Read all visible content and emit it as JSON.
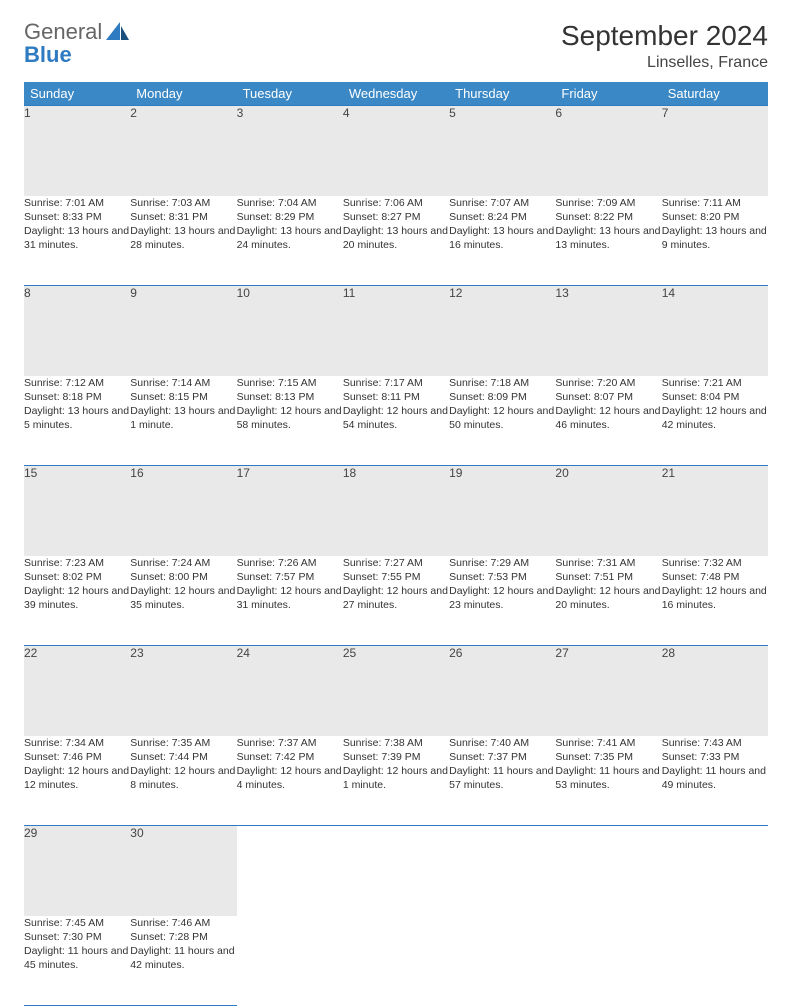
{
  "logo": {
    "word1": "General",
    "word2": "Blue"
  },
  "title": "September 2024",
  "location": "Linselles, France",
  "header_bg": "#3a88c5",
  "rule_color": "#2f7bc2",
  "daynum_bg": "#e9e9e9",
  "weekdays": [
    "Sunday",
    "Monday",
    "Tuesday",
    "Wednesday",
    "Thursday",
    "Friday",
    "Saturday"
  ],
  "weeks": [
    [
      {
        "n": "1",
        "sr": "7:01 AM",
        "ss": "8:33 PM",
        "dl": "13 hours and 31 minutes."
      },
      {
        "n": "2",
        "sr": "7:03 AM",
        "ss": "8:31 PM",
        "dl": "13 hours and 28 minutes."
      },
      {
        "n": "3",
        "sr": "7:04 AM",
        "ss": "8:29 PM",
        "dl": "13 hours and 24 minutes."
      },
      {
        "n": "4",
        "sr": "7:06 AM",
        "ss": "8:27 PM",
        "dl": "13 hours and 20 minutes."
      },
      {
        "n": "5",
        "sr": "7:07 AM",
        "ss": "8:24 PM",
        "dl": "13 hours and 16 minutes."
      },
      {
        "n": "6",
        "sr": "7:09 AM",
        "ss": "8:22 PM",
        "dl": "13 hours and 13 minutes."
      },
      {
        "n": "7",
        "sr": "7:11 AM",
        "ss": "8:20 PM",
        "dl": "13 hours and 9 minutes."
      }
    ],
    [
      {
        "n": "8",
        "sr": "7:12 AM",
        "ss": "8:18 PM",
        "dl": "13 hours and 5 minutes."
      },
      {
        "n": "9",
        "sr": "7:14 AM",
        "ss": "8:15 PM",
        "dl": "13 hours and 1 minute."
      },
      {
        "n": "10",
        "sr": "7:15 AM",
        "ss": "8:13 PM",
        "dl": "12 hours and 58 minutes."
      },
      {
        "n": "11",
        "sr": "7:17 AM",
        "ss": "8:11 PM",
        "dl": "12 hours and 54 minutes."
      },
      {
        "n": "12",
        "sr": "7:18 AM",
        "ss": "8:09 PM",
        "dl": "12 hours and 50 minutes."
      },
      {
        "n": "13",
        "sr": "7:20 AM",
        "ss": "8:07 PM",
        "dl": "12 hours and 46 minutes."
      },
      {
        "n": "14",
        "sr": "7:21 AM",
        "ss": "8:04 PM",
        "dl": "12 hours and 42 minutes."
      }
    ],
    [
      {
        "n": "15",
        "sr": "7:23 AM",
        "ss": "8:02 PM",
        "dl": "12 hours and 39 minutes."
      },
      {
        "n": "16",
        "sr": "7:24 AM",
        "ss": "8:00 PM",
        "dl": "12 hours and 35 minutes."
      },
      {
        "n": "17",
        "sr": "7:26 AM",
        "ss": "7:57 PM",
        "dl": "12 hours and 31 minutes."
      },
      {
        "n": "18",
        "sr": "7:27 AM",
        "ss": "7:55 PM",
        "dl": "12 hours and 27 minutes."
      },
      {
        "n": "19",
        "sr": "7:29 AM",
        "ss": "7:53 PM",
        "dl": "12 hours and 23 minutes."
      },
      {
        "n": "20",
        "sr": "7:31 AM",
        "ss": "7:51 PM",
        "dl": "12 hours and 20 minutes."
      },
      {
        "n": "21",
        "sr": "7:32 AM",
        "ss": "7:48 PM",
        "dl": "12 hours and 16 minutes."
      }
    ],
    [
      {
        "n": "22",
        "sr": "7:34 AM",
        "ss": "7:46 PM",
        "dl": "12 hours and 12 minutes."
      },
      {
        "n": "23",
        "sr": "7:35 AM",
        "ss": "7:44 PM",
        "dl": "12 hours and 8 minutes."
      },
      {
        "n": "24",
        "sr": "7:37 AM",
        "ss": "7:42 PM",
        "dl": "12 hours and 4 minutes."
      },
      {
        "n": "25",
        "sr": "7:38 AM",
        "ss": "7:39 PM",
        "dl": "12 hours and 1 minute."
      },
      {
        "n": "26",
        "sr": "7:40 AM",
        "ss": "7:37 PM",
        "dl": "11 hours and 57 minutes."
      },
      {
        "n": "27",
        "sr": "7:41 AM",
        "ss": "7:35 PM",
        "dl": "11 hours and 53 minutes."
      },
      {
        "n": "28",
        "sr": "7:43 AM",
        "ss": "7:33 PM",
        "dl": "11 hours and 49 minutes."
      }
    ],
    [
      {
        "n": "29",
        "sr": "7:45 AM",
        "ss": "7:30 PM",
        "dl": "11 hours and 45 minutes."
      },
      {
        "n": "30",
        "sr": "7:46 AM",
        "ss": "7:28 PM",
        "dl": "11 hours and 42 minutes."
      },
      null,
      null,
      null,
      null,
      null
    ]
  ],
  "labels": {
    "sunrise": "Sunrise:",
    "sunset": "Sunset:",
    "daylight": "Daylight:"
  }
}
